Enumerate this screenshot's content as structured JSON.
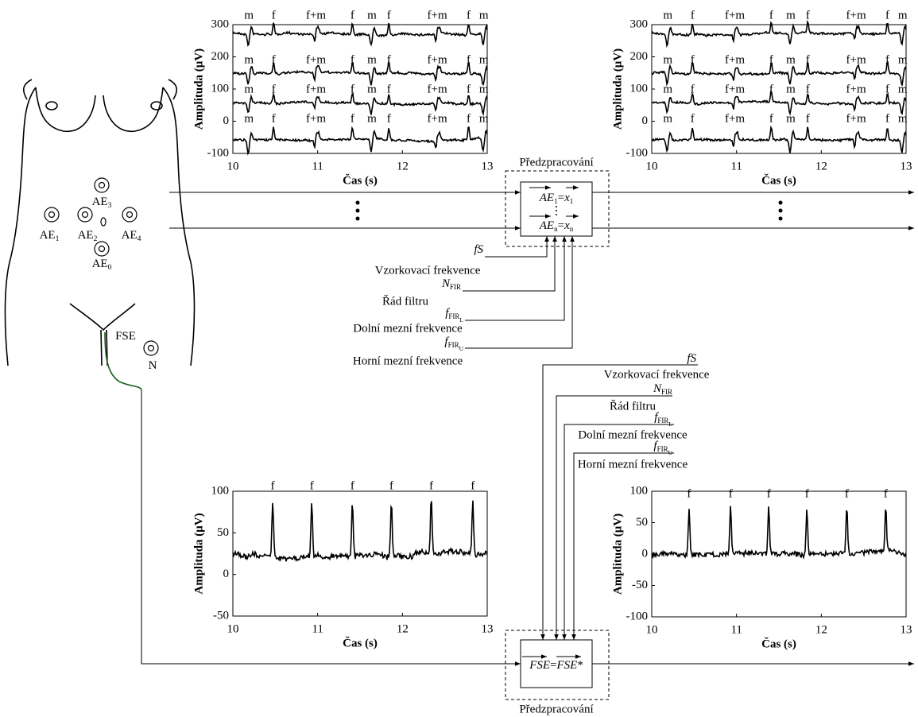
{
  "chart_data": [
    {
      "type": "line",
      "xlim": [
        10,
        13
      ],
      "xticks": [
        10,
        11,
        12,
        13
      ],
      "ylim": [
        -100,
        300
      ],
      "yticks": [
        -100,
        0,
        100,
        200,
        300
      ],
      "xlabel": "Čas (s)",
      "ylabel": "Amplituda (μV)",
      "annotations": [
        {
          "text": "m",
          "x": 10.19
        },
        {
          "text": "f",
          "x": 10.48
        },
        {
          "text": "f+m",
          "x": 10.98
        },
        {
          "text": "f",
          "x": 11.41
        },
        {
          "text": "m",
          "x": 11.64
        },
        {
          "text": "f",
          "x": 11.84
        },
        {
          "text": "f+m",
          "x": 12.41
        },
        {
          "text": "f",
          "x": 12.78
        },
        {
          "text": "m",
          "x": 12.96
        }
      ]
    },
    {
      "type": "line",
      "xlim": [
        10,
        13
      ],
      "xticks": [
        10,
        11,
        12,
        13
      ],
      "ylim": [
        -100,
        300
      ],
      "yticks": [
        -100,
        0,
        100,
        200,
        300
      ],
      "xlabel": "Čas (s)",
      "ylabel": "Amplituda (μV)",
      "annotations": [
        {
          "text": "m",
          "x": 10.19
        },
        {
          "text": "f",
          "x": 10.48
        },
        {
          "text": "f+m",
          "x": 10.98
        },
        {
          "text": "f",
          "x": 11.41
        },
        {
          "text": "m",
          "x": 11.64
        },
        {
          "text": "f",
          "x": 11.84
        },
        {
          "text": "f+m",
          "x": 12.41
        },
        {
          "text": "f",
          "x": 12.78
        },
        {
          "text": "m",
          "x": 12.96
        }
      ]
    },
    {
      "type": "line",
      "xlim": [
        10,
        13
      ],
      "xticks": [
        10,
        11,
        12,
        13
      ],
      "ylim": [
        -50,
        100
      ],
      "yticks": [
        -50,
        0,
        50,
        100
      ],
      "xlabel": "Čas (s)",
      "ylabel": "Amplituda (μV)",
      "annotations": [
        {
          "text": "f",
          "x": 10.47
        },
        {
          "text": "f",
          "x": 10.93
        },
        {
          "text": "f",
          "x": 11.41
        },
        {
          "text": "f",
          "x": 11.87
        },
        {
          "text": "f",
          "x": 12.34
        },
        {
          "text": "f",
          "x": 12.83
        }
      ]
    },
    {
      "type": "line",
      "xlim": [
        10,
        13
      ],
      "xticks": [
        10,
        11,
        12,
        13
      ],
      "ylim": [
        -100,
        100
      ],
      "yticks": [
        -100,
        -50,
        0,
        50,
        100
      ],
      "xlabel": "Čas (s)",
      "ylabel": "Amplituda (μV)",
      "annotations": [
        {
          "text": "f",
          "x": 10.44
        },
        {
          "text": "f",
          "x": 10.93
        },
        {
          "text": "f",
          "x": 11.38
        },
        {
          "text": "f",
          "x": 11.83
        },
        {
          "text": "f",
          "x": 12.3
        },
        {
          "text": "f",
          "x": 12.76
        }
      ]
    }
  ],
  "diagram": {
    "electrodes": [
      {
        "label": "AE",
        "sub": "3"
      },
      {
        "label": "AE",
        "sub": "1"
      },
      {
        "label": "AE",
        "sub": "2"
      },
      {
        "label": "AE",
        "sub": "4"
      },
      {
        "label": "AE",
        "sub": "0"
      },
      {
        "label": "FSE"
      },
      {
        "label": "N"
      }
    ],
    "block_title": "Předzpracování",
    "block_top": {
      "rows": [
        {
          "lhs": "AE",
          "lhs_sub": "1",
          "rhs": "x",
          "rhs_sub": "1"
        },
        {
          "lhs": "AE",
          "lhs_sub": "n",
          "rhs": "x",
          "rhs_sub": "n"
        }
      ],
      "ellipsis": "⋮"
    },
    "block_bottom": {
      "lhs": "FSE",
      "rhs": "FSE",
      "suffix": "*"
    },
    "eq": "=",
    "params": [
      {
        "symbol": "fS",
        "name": "Vzorkovací frekvence"
      },
      {
        "symbol": "N",
        "sub": "FIR",
        "name": "Řád filtru"
      },
      {
        "symbol": "f",
        "sub": "FIR",
        "subsub": "L",
        "name": "Dolní mezní frekvence"
      },
      {
        "symbol": "f",
        "sub": "FIR",
        "subsub": "U",
        "name": "Horní mezní frekvence"
      }
    ]
  }
}
